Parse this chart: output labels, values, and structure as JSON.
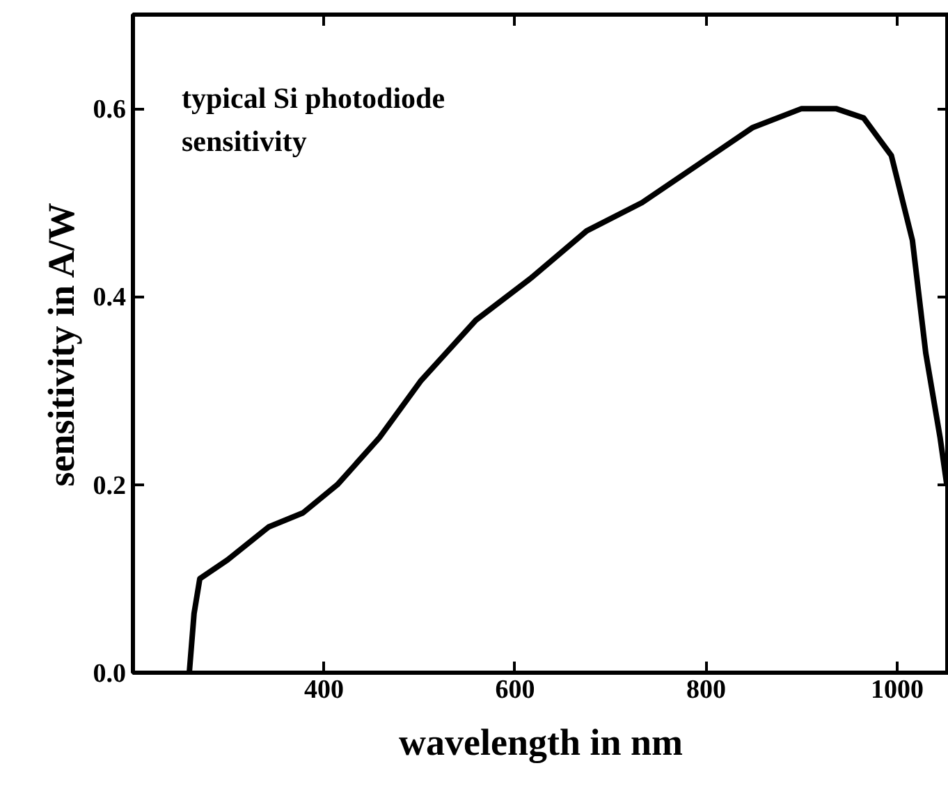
{
  "chart_data": {
    "type": "line",
    "xlabel": "wavelength in nm",
    "ylabel": "sensitivity in A/W",
    "annotations": [
      "typical Si photodiode\nsensitivity"
    ],
    "x": [
      259,
      264,
      270,
      299,
      342,
      378,
      414,
      458,
      501,
      559,
      617,
      675,
      733,
      791,
      849,
      900,
      936,
      965,
      994,
      1016,
      1030,
      1045,
      1052
    ],
    "series": [
      {
        "color": "#000000",
        "values": [
          0.0,
          0.063,
          0.1,
          0.12,
          0.155,
          0.17,
          0.2,
          0.25,
          0.31,
          0.375,
          0.42,
          0.47,
          0.5,
          0.54,
          0.58,
          0.6,
          0.6,
          0.59,
          0.55,
          0.46,
          0.34,
          0.25,
          0.2
        ]
      }
    ],
    "xlim": [
      200,
      1054
    ],
    "ylim": [
      0,
      0.7
    ],
    "xticks": [
      400,
      600,
      800,
      1000
    ],
    "yticks": [
      {
        "value": 0,
        "label": "0.0"
      },
      0.2,
      0.4,
      0.6
    ],
    "grid": false,
    "marker": "none",
    "line_style": "solid"
  }
}
